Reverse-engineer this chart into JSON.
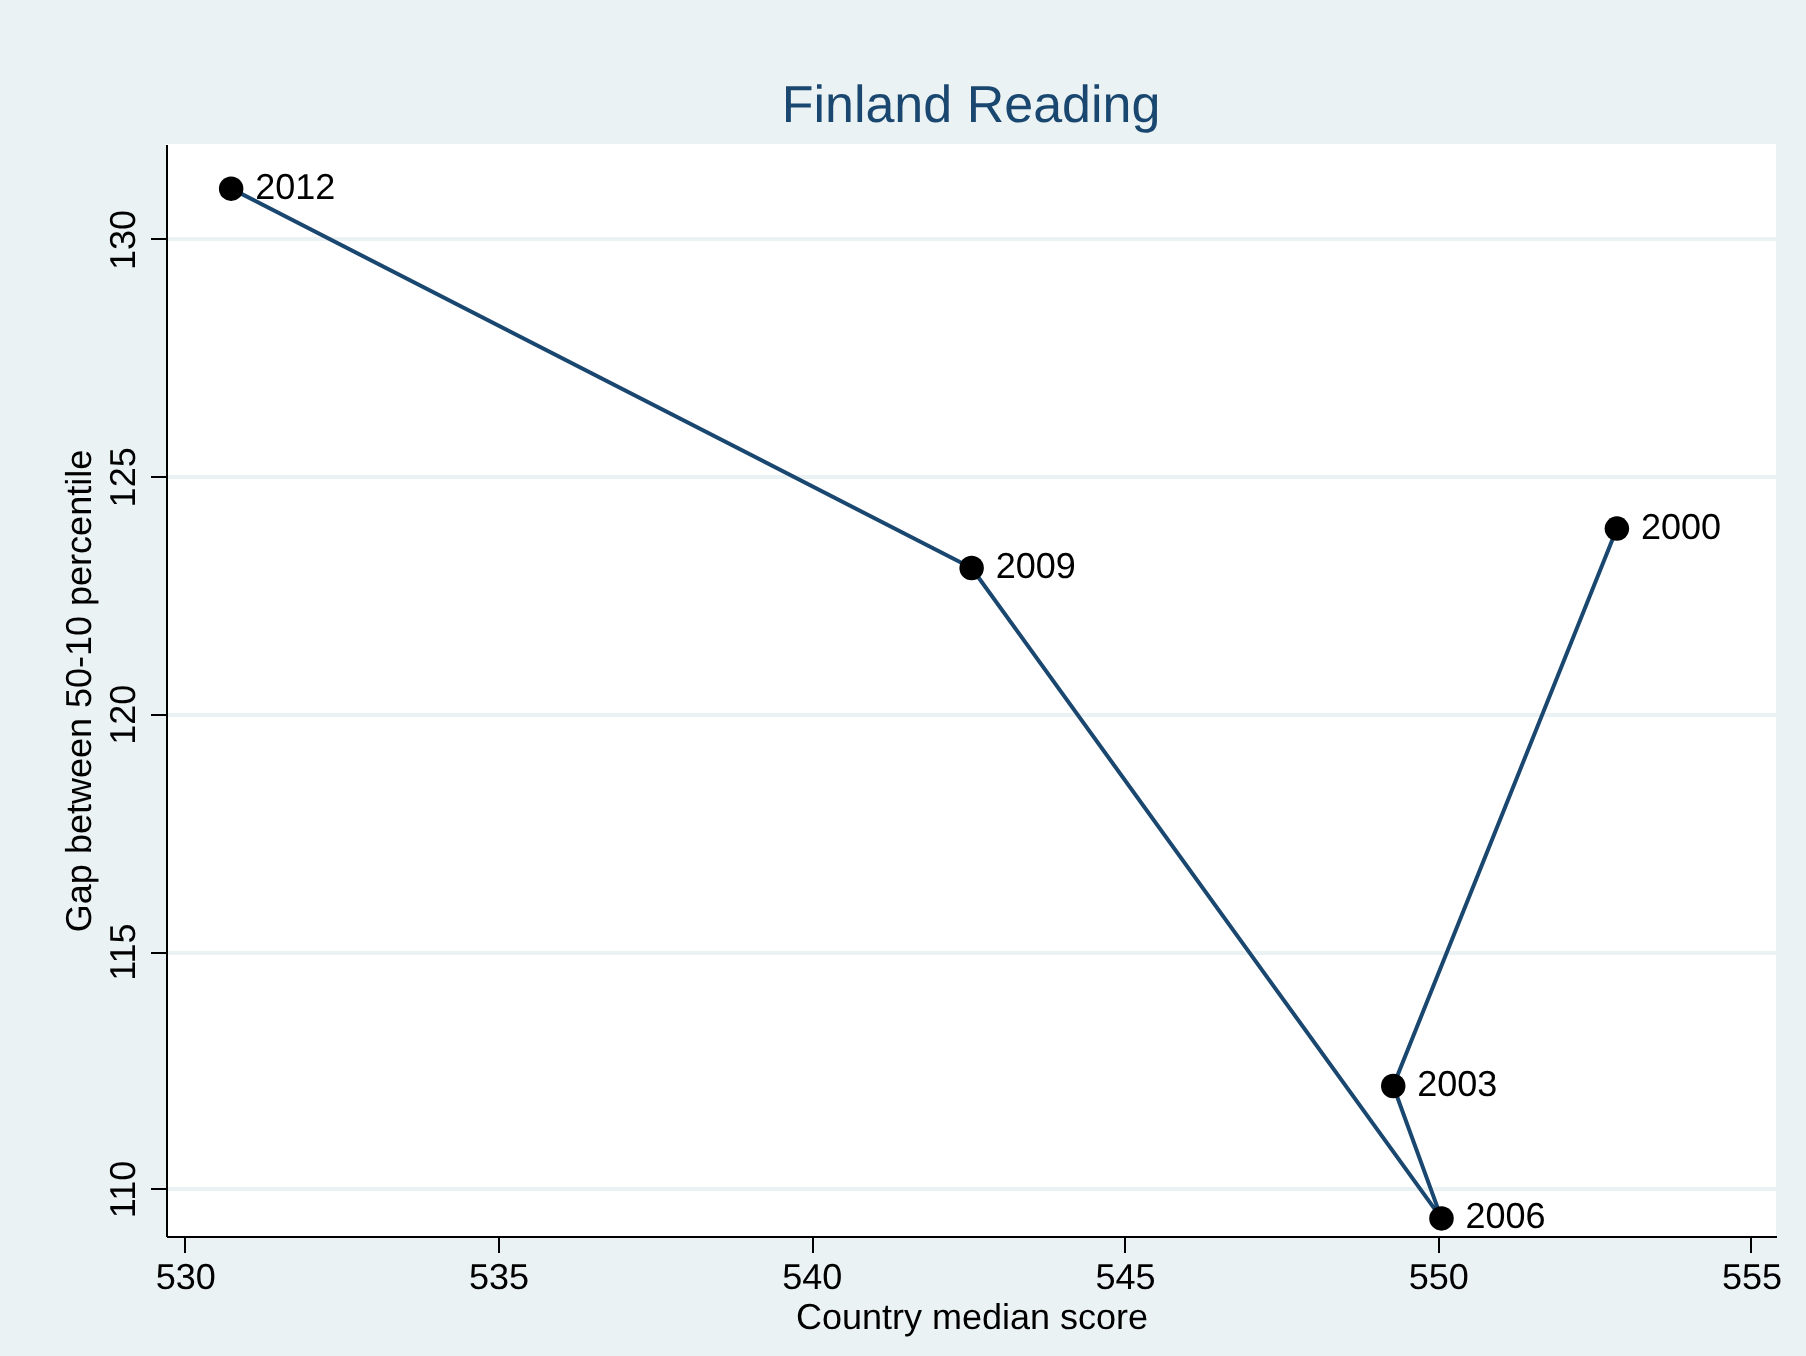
{
  "chart_data": {
    "type": "line",
    "title": "Finland Reading",
    "xlabel": "Country median score",
    "ylabel": "Gap between 50-10 percentile",
    "x": [
      552.86,
      549.29,
      550.06,
      542.56,
      530.74
    ],
    "values": [
      123.9,
      112.16,
      109.37,
      123.07,
      131.06
    ],
    "color": "#1a476f",
    "marker": "circle",
    "line_style": "solid",
    "grid": "y",
    "xlim": [
      529.7,
      555.4
    ],
    "ylim": [
      109.0,
      132.0
    ],
    "xticks": [
      530,
      535,
      540,
      545,
      550,
      555
    ],
    "yticks": [
      110,
      115,
      120,
      125,
      130
    ],
    "annotations": [
      {
        "text": "2000",
        "x": 552.86,
        "y": 123.9
      },
      {
        "text": "2003",
        "x": 549.29,
        "y": 112.16
      },
      {
        "text": "2006",
        "x": 550.06,
        "y": 109.37
      },
      {
        "text": "2009",
        "x": 542.56,
        "y": 123.07
      },
      {
        "text": "2012",
        "x": 530.74,
        "y": 131.06
      }
    ]
  }
}
